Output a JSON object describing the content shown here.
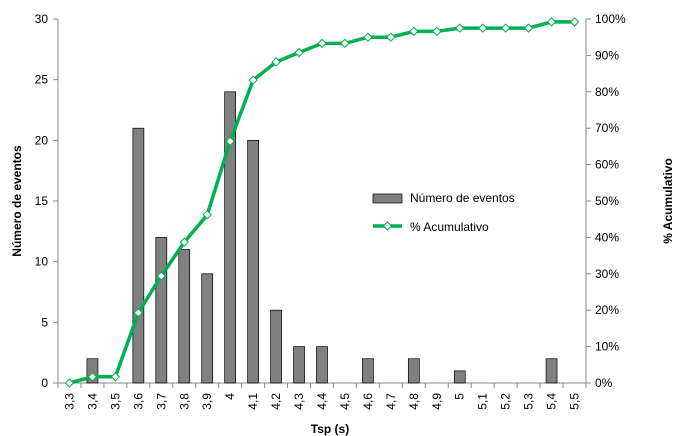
{
  "chart_data": {
    "type": "bar",
    "categories": [
      "3,3",
      "3,4",
      "3,5",
      "3,6",
      "3,7",
      "3,8",
      "3,9",
      "4",
      "4,1",
      "4,2",
      "4,3",
      "4,4",
      "4,5",
      "4,6",
      "4,7",
      "4,8",
      "4,9",
      "5",
      "5,1",
      "5,2",
      "5,3",
      "5,4",
      "5,5"
    ],
    "series": [
      {
        "name": "Número de eventos",
        "type": "bar",
        "axis": "left",
        "values": [
          0,
          2,
          0,
          21,
          12,
          11,
          9,
          24,
          20,
          6,
          3,
          3,
          0,
          2,
          0,
          2,
          0,
          1,
          0,
          0,
          0,
          2,
          0
        ],
        "color": "#808080"
      },
      {
        "name": "% Acumulativo",
        "type": "line",
        "axis": "right",
        "values": [
          0,
          1.7,
          1.7,
          19.3,
          29.4,
          38.7,
          46.2,
          66.4,
          83.2,
          88.2,
          90.8,
          93.3,
          93.3,
          95.0,
          95.0,
          96.6,
          96.6,
          97.5,
          97.5,
          97.5,
          97.5,
          99.2,
          99.2
        ],
        "color": "#00b050"
      }
    ],
    "xlabel": "Tsp (s)",
    "ylabel": "Número de eventos",
    "y2label": "% Acumulativo",
    "ylim": [
      0,
      30
    ],
    "yticks": [
      0,
      5,
      10,
      15,
      20,
      25,
      30
    ],
    "y2lim": [
      0,
      100
    ],
    "y2ticks": [
      "0%",
      "10%",
      "20%",
      "30%",
      "40%",
      "50%",
      "60%",
      "70%",
      "80%",
      "90%",
      "100%"
    ],
    "grid": false,
    "legend_position": "center-right"
  }
}
